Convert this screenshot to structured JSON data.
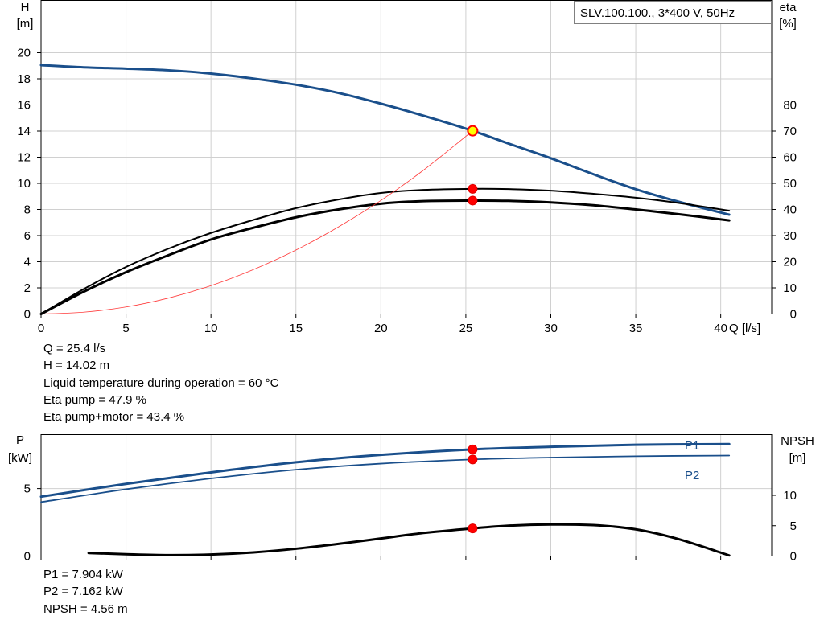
{
  "chart_data": [
    {
      "type": "line",
      "title": "SLV.100.100., 3*400 V, 50Hz",
      "xlabel": "Q [l/s]",
      "ylabel_left": [
        "H",
        "[m]"
      ],
      "ylabel_right": [
        "eta",
        "[%]"
      ],
      "xlim": [
        0,
        43
      ],
      "ylim_left": [
        0,
        24
      ],
      "ylim_right": [
        0,
        120
      ],
      "x_ticks": [
        "0",
        "5",
        "10",
        "15",
        "20",
        "25",
        "30",
        "35",
        "40"
      ],
      "y_left_ticks": [
        "0",
        "2",
        "4",
        "6",
        "8",
        "10",
        "12",
        "14",
        "16",
        "18",
        "20"
      ],
      "y_right_ticks": [
        "0",
        "10",
        "20",
        "30",
        "40",
        "50",
        "60",
        "70",
        "80"
      ],
      "grid": true,
      "series": [
        {
          "key": "H",
          "axis": "left",
          "color": "#1a4f8b",
          "width": 3,
          "x": [
            0,
            2.5,
            5,
            7.5,
            10,
            12.5,
            15,
            17.5,
            20,
            22.5,
            25.4,
            27.5,
            30,
            32.5,
            35,
            37.5,
            40.5
          ],
          "y": [
            19.05,
            18.88,
            18.78,
            18.65,
            18.4,
            18.02,
            17.55,
            16.92,
            16.1,
            15.18,
            14.02,
            13.05,
            11.92,
            10.7,
            9.55,
            8.6,
            7.6
          ]
        },
        {
          "key": "eta_pump",
          "axis": "right",
          "color": "#000000",
          "width": 2,
          "x": [
            0,
            2.5,
            5,
            7.5,
            10,
            12.5,
            15,
            17.5,
            20,
            22.5,
            25.4,
            27.5,
            30,
            32.5,
            35,
            37.5,
            40.5
          ],
          "y": [
            0,
            9.5,
            18,
            25,
            31,
            36,
            40.5,
            43.8,
            46.3,
            47.5,
            47.9,
            47.8,
            47.2,
            46,
            44.5,
            42.5,
            39.5
          ]
        },
        {
          "key": "eta_pump_motor",
          "axis": "right",
          "color": "#000000",
          "width": 3,
          "x": [
            0,
            2.5,
            5,
            7.5,
            10,
            12.5,
            15,
            17.5,
            20,
            22.5,
            25.4,
            27.5,
            30,
            32.5,
            35,
            37.5,
            40.5
          ],
          "y": [
            0,
            8.5,
            16,
            22.5,
            28.5,
            33,
            37,
            40,
            42.2,
            43.2,
            43.4,
            43.3,
            42.7,
            41.6,
            40,
            38.2,
            35.8
          ]
        },
        {
          "key": "system",
          "axis": "left",
          "color": "#ff3b3b",
          "width": 0.8,
          "x": [
            0,
            2.5,
            5,
            7.5,
            10,
            12.5,
            15,
            17.5,
            20,
            22.5,
            25.4
          ],
          "y": [
            0,
            0.14,
            0.54,
            1.22,
            2.17,
            3.4,
            4.89,
            6.66,
            8.69,
            11.0,
            14.02
          ]
        }
      ],
      "operating_points": [
        {
          "axis": "left",
          "x": 25.4,
          "y": 14.02,
          "style": "yellow"
        },
        {
          "axis": "right",
          "x": 25.4,
          "y": 47.9,
          "style": "red"
        },
        {
          "axis": "right",
          "x": 25.4,
          "y": 43.4,
          "style": "red"
        }
      ]
    },
    {
      "type": "line",
      "ylabel_left": [
        "P",
        "[kW]"
      ],
      "ylabel_right": [
        "NPSH",
        "[m]"
      ],
      "xlim": [
        0,
        43
      ],
      "ylim_left": [
        0,
        9
      ],
      "ylim_right": [
        0,
        20
      ],
      "y_left_ticks": [
        "0",
        "5"
      ],
      "y_right_ticks": [
        "0",
        "5",
        "10"
      ],
      "grid": true,
      "series": [
        {
          "key": "P1",
          "name": "P1",
          "axis": "left",
          "color": "#1a4f8b",
          "width": 3,
          "x": [
            0,
            5,
            10,
            15,
            20,
            25.4,
            30,
            35,
            40.5
          ],
          "y": [
            4.4,
            5.35,
            6.2,
            6.95,
            7.5,
            7.904,
            8.1,
            8.25,
            8.3
          ]
        },
        {
          "key": "P2",
          "name": "P2",
          "axis": "left",
          "color": "#1a4f8b",
          "width": 1.8,
          "x": [
            0,
            5,
            10,
            15,
            20,
            25.4,
            30,
            35,
            40.5
          ],
          "y": [
            4.0,
            4.95,
            5.75,
            6.4,
            6.85,
            7.162,
            7.3,
            7.4,
            7.45
          ]
        },
        {
          "key": "NPSH",
          "axis": "right",
          "color": "#000000",
          "width": 3,
          "x": [
            2.8,
            5,
            7.5,
            10,
            12.5,
            15,
            17.5,
            20,
            22.5,
            25.4,
            27.5,
            30,
            32.5,
            35,
            37.5,
            40.5
          ],
          "y": [
            0.5,
            0.3,
            0.15,
            0.25,
            0.6,
            1.2,
            2.0,
            2.9,
            3.8,
            4.56,
            5.0,
            5.2,
            5.1,
            4.4,
            2.8,
            0.1
          ]
        }
      ],
      "operating_points": [
        {
          "axis": "left",
          "x": 25.4,
          "y": 7.904,
          "style": "red"
        },
        {
          "axis": "left",
          "x": 25.4,
          "y": 7.162,
          "style": "red"
        },
        {
          "axis": "right",
          "x": 25.4,
          "y": 4.56,
          "style": "red"
        }
      ]
    }
  ],
  "top_info": [
    "Q = 25.4 l/s",
    "H = 14.02 m",
    "Liquid temperature during operation = 60 °C",
    "Eta pump = 47.9 %",
    "Eta pump+motor = 43.4 %"
  ],
  "bottom_info": [
    "P1 = 7.904 kW",
    "P2 = 7.162 kW",
    "NPSH = 4.56 m"
  ]
}
